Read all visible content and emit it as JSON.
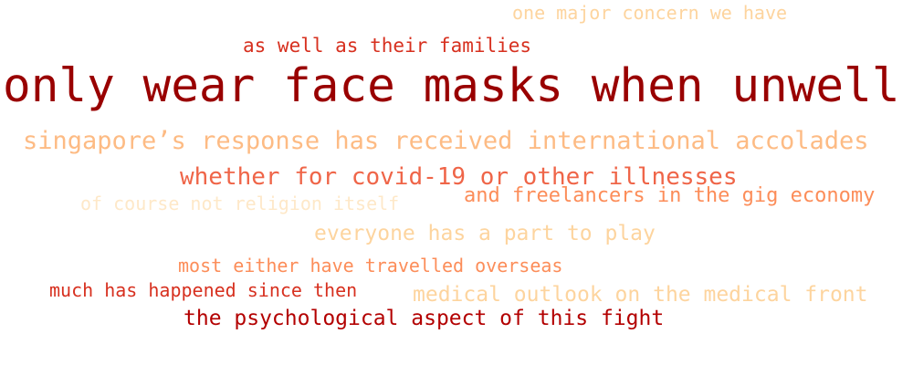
{
  "word_cloud": {
    "phrases": [
      {
        "text": "one major concern we have",
        "color": "#fdd49e"
      },
      {
        "text": "as well as their families",
        "color": "#d7301f"
      },
      {
        "text": "only wear face masks when unwell",
        "color": "#990000"
      },
      {
        "text": "singapore’s response has received international accolades",
        "color": "#fdbb84"
      },
      {
        "text": "whether for covid-19 or other illnesses",
        "color": "#ef6548"
      },
      {
        "text": "of course not religion itself",
        "color": "#fee8c8"
      },
      {
        "text": "and freelancers in the gig economy",
        "color": "#fc8d59"
      },
      {
        "text": "everyone has a part to play",
        "color": "#fdd49e"
      },
      {
        "text": "most either have travelled overseas",
        "color": "#fc8d59"
      },
      {
        "text": "much has happened since then",
        "color": "#d7301f"
      },
      {
        "text": "medical outlook on the medical front",
        "color": "#fdd49e"
      },
      {
        "text": "the psychological aspect of this fight",
        "color": "#b30000"
      }
    ]
  }
}
